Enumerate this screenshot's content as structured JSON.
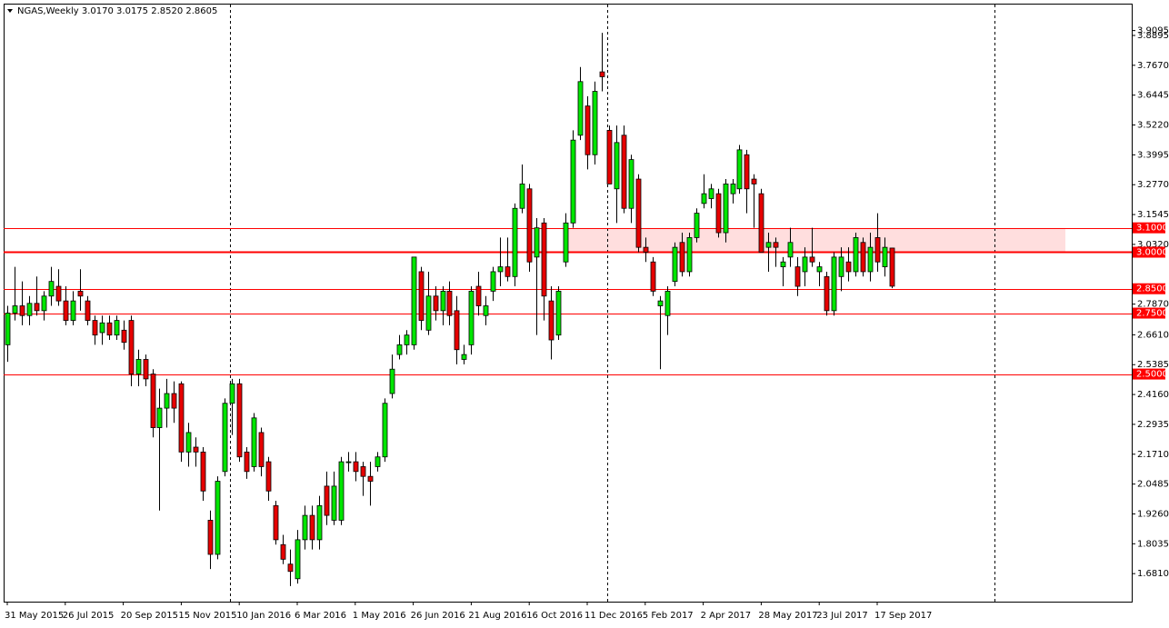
{
  "chart_data": {
    "type": "candlestick",
    "title": "NGAS,Weekly  3.0170 3.0175 2.8520 2.8605",
    "up_color": "#00e600",
    "down_color": "#e60000",
    "level_color": "#ff0000",
    "zone_color": "#ffdede",
    "categories": [
      "31 May 2015",
      null,
      null,
      null,
      null,
      null,
      null,
      null,
      "26 Jul 2015",
      null,
      null,
      null,
      null,
      null,
      null,
      null,
      "20 Sep 2015",
      null,
      null,
      null,
      null,
      null,
      null,
      null,
      "15 Nov 2015",
      null,
      null,
      null,
      null,
      null,
      null,
      null,
      "10 Jan 2016",
      null,
      null,
      null,
      null,
      null,
      null,
      null,
      "6 Mar 2016",
      null,
      null,
      null,
      null,
      null,
      null,
      null,
      "1 May 2016",
      null,
      null,
      null,
      null,
      null,
      null,
      null,
      "26 Jun 2016",
      null,
      null,
      null,
      null,
      null,
      null,
      null,
      "21 Aug 2016",
      null,
      null,
      null,
      null,
      null,
      null,
      null,
      "16 Oct 2016",
      null,
      null,
      null,
      null,
      null,
      null,
      null,
      "11 Dec 2016",
      null,
      null,
      null,
      null,
      null,
      null,
      null,
      "5 Feb 2017",
      null,
      null,
      null,
      null,
      null,
      null,
      null,
      "2 Apr 2017",
      null,
      null,
      null,
      null,
      null,
      null,
      null,
      "28 May 2017",
      null,
      null,
      null,
      null,
      null,
      null,
      null,
      "23 Jul 2017",
      null,
      null,
      null,
      null,
      null,
      null,
      null,
      "17 Sep 2017",
      null,
      null
    ],
    "open": [
      2.62,
      2.75,
      2.78,
      2.74,
      2.79,
      2.76,
      2.82,
      2.86,
      2.8,
      2.72,
      2.84,
      2.8,
      2.72,
      2.67,
      2.71,
      2.66,
      2.68,
      2.72,
      2.5,
      2.56,
      2.5,
      2.28,
      2.36,
      2.42,
      2.46,
      2.18,
      2.2,
      2.18,
      1.9,
      1.76,
      2.1,
      2.38,
      2.46,
      2.18,
      2.12,
      2.26,
      2.14,
      1.96,
      1.8,
      1.72,
      1.66,
      1.82,
      1.92,
      1.82,
      2.04,
      1.9,
      1.9,
      2.14,
      2.14,
      2.12,
      2.08,
      2.12,
      2.16,
      2.42,
      2.58,
      2.62,
      2.62,
      2.92,
      2.68,
      2.82,
      2.76,
      2.84,
      2.76,
      2.56,
      2.62,
      2.86,
      2.74,
      2.84,
      2.92,
      2.94,
      2.9,
      3.18,
      3.26,
      2.98,
      3.12,
      2.8,
      2.66,
      2.96,
      3.12,
      3.48,
      3.6,
      3.4,
      3.74,
      3.5,
      3.26,
      3.48,
      3.18,
      3.3,
      3.02,
      2.96,
      2.78,
      2.74,
      2.88,
      3.04,
      2.92,
      3.06,
      3.2,
      3.22,
      3.24,
      3.08,
      3.24,
      3.26,
      3.4,
      3.3,
      3.24,
      3.02,
      3.04,
      2.94,
      2.98,
      2.94,
      2.92,
      2.98,
      2.92,
      2.9,
      2.76,
      2.9,
      2.96,
      2.92,
      3.04,
      2.92,
      3.06,
      2.94,
      3.017
    ],
    "high": [
      2.78,
      2.94,
      2.88,
      2.82,
      2.9,
      2.84,
      2.94,
      2.93,
      2.86,
      2.84,
      2.93,
      2.82,
      2.74,
      2.74,
      2.74,
      2.74,
      2.72,
      2.74,
      2.6,
      2.58,
      2.52,
      2.44,
      2.48,
      2.47,
      2.47,
      2.3,
      2.24,
      2.2,
      1.94,
      2.08,
      2.4,
      2.48,
      2.48,
      2.2,
      2.34,
      2.28,
      2.16,
      1.98,
      1.84,
      1.78,
      1.86,
      1.96,
      1.96,
      2.0,
      2.1,
      2.1,
      2.16,
      2.18,
      2.18,
      2.14,
      2.14,
      2.18,
      2.4,
      2.58,
      2.66,
      2.68,
      2.98,
      2.94,
      2.92,
      2.86,
      2.86,
      2.88,
      2.82,
      2.62,
      2.86,
      2.92,
      2.82,
      2.94,
      3.06,
      3.06,
      3.2,
      3.36,
      3.28,
      3.14,
      3.14,
      2.86,
      2.86,
      3.16,
      3.5,
      3.76,
      3.64,
      3.7,
      3.9,
      3.52,
      3.52,
      3.52,
      3.4,
      3.32,
      3.06,
      2.98,
      2.82,
      2.86,
      3.04,
      3.08,
      3.08,
      3.18,
      3.32,
      3.28,
      3.26,
      3.3,
      3.3,
      3.44,
      3.42,
      3.32,
      3.26,
      3.08,
      3.06,
      2.98,
      3.1,
      2.98,
      3.02,
      3.1,
      2.96,
      2.92,
      3.0,
      3.02,
      3.02,
      3.08,
      3.06,
      3.08,
      3.16,
      3.06,
      3.0175
    ],
    "low": [
      2.55,
      2.72,
      2.7,
      2.7,
      2.74,
      2.72,
      2.78,
      2.78,
      2.7,
      2.7,
      2.76,
      2.7,
      2.62,
      2.62,
      2.64,
      2.64,
      2.6,
      2.45,
      2.45,
      2.45,
      2.24,
      1.94,
      2.28,
      2.3,
      2.14,
      2.12,
      2.12,
      1.98,
      1.7,
      1.74,
      2.08,
      2.25,
      2.14,
      2.07,
      2.1,
      2.08,
      1.98,
      1.8,
      1.72,
      1.63,
      1.64,
      1.78,
      1.78,
      1.78,
      1.88,
      1.88,
      1.88,
      2.1,
      2.06,
      2.0,
      1.96,
      2.1,
      2.14,
      2.4,
      2.56,
      2.58,
      2.6,
      2.68,
      2.66,
      2.72,
      2.7,
      2.7,
      2.54,
      2.54,
      2.58,
      2.74,
      2.7,
      2.8,
      2.86,
      2.88,
      2.86,
      3.16,
      2.92,
      2.66,
      2.72,
      2.56,
      2.64,
      2.94,
      3.1,
      3.46,
      3.34,
      3.36,
      3.66,
      3.28,
      3.12,
      3.16,
      3.12,
      3.0,
      2.96,
      2.82,
      2.52,
      2.66,
      2.86,
      2.9,
      2.9,
      3.04,
      3.18,
      3.18,
      3.06,
      3.04,
      3.2,
      3.24,
      3.16,
      3.1,
      3.0,
      2.92,
      2.94,
      2.86,
      2.94,
      2.82,
      2.86,
      2.94,
      2.86,
      2.74,
      2.74,
      2.84,
      2.88,
      2.9,
      2.9,
      2.88,
      2.92,
      2.9,
      2.852
    ],
    "close": [
      2.75,
      2.78,
      2.74,
      2.79,
      2.76,
      2.82,
      2.88,
      2.8,
      2.72,
      2.8,
      2.82,
      2.72,
      2.66,
      2.71,
      2.66,
      2.72,
      2.63,
      2.5,
      2.56,
      2.48,
      2.28,
      2.36,
      2.42,
      2.36,
      2.18,
      2.26,
      2.18,
      2.02,
      1.76,
      2.06,
      2.38,
      2.46,
      2.16,
      2.1,
      2.32,
      2.12,
      2.02,
      1.82,
      1.74,
      1.69,
      1.82,
      1.92,
      1.82,
      1.96,
      1.92,
      2.04,
      2.14,
      2.14,
      2.1,
      2.08,
      2.06,
      2.16,
      2.38,
      2.52,
      2.62,
      2.66,
      2.98,
      2.72,
      2.82,
      2.76,
      2.84,
      2.74,
      2.6,
      2.58,
      2.84,
      2.78,
      2.78,
      2.92,
      2.94,
      2.9,
      3.18,
      3.28,
      2.96,
      3.1,
      2.82,
      2.64,
      2.84,
      3.12,
      3.46,
      3.7,
      3.4,
      3.66,
      3.72,
      3.28,
      3.45,
      3.18,
      3.38,
      3.02,
      3.0,
      2.84,
      2.8,
      2.84,
      3.02,
      2.92,
      3.06,
      3.16,
      3.24,
      3.26,
      3.08,
      3.28,
      3.28,
      3.42,
      3.26,
      3.28,
      3.0,
      3.04,
      3.02,
      2.96,
      3.04,
      2.86,
      2.98,
      2.96,
      2.94,
      2.76,
      2.98,
      2.98,
      2.92,
      3.06,
      2.92,
      3.02,
      2.96,
      3.02,
      2.8605
    ],
    "ylim": [
      1.566,
      4.02
    ],
    "yticks": [
      3.8895,
      {
        "value": 3.767,
        "label": "3.7670"
      },
      3.6445,
      {
        "value": 3.522,
        "label": "3.5220"
      },
      3.3995,
      {
        "value": 3.277,
        "label": "3.2770"
      },
      3.1545,
      {
        "value": 3.032,
        "label": "3.0320"
      },
      3.9095,
      {
        "value": 2.787,
        "label": "2.7870"
      },
      {
        "value": 2.661,
        "label": "2.6610"
      },
      2.5385,
      {
        "value": 2.416,
        "label": "2.4160"
      },
      2.2935,
      {
        "value": 2.171,
        "label": "2.1710"
      },
      2.0485,
      {
        "value": 1.926,
        "label": "1.9260"
      },
      1.8035,
      {
        "value": 1.681,
        "label": "1.6810"
      },
      1.5585
    ],
    "levels": [
      {
        "value": 3.1,
        "label": "3.1000"
      },
      {
        "value": 3.0,
        "label": "3.0000"
      },
      {
        "value": 2.85,
        "label": "2.8500"
      },
      {
        "value": 2.75,
        "label": "2.7500"
      },
      {
        "value": 2.5,
        "label": "2.5000"
      }
    ]
  }
}
